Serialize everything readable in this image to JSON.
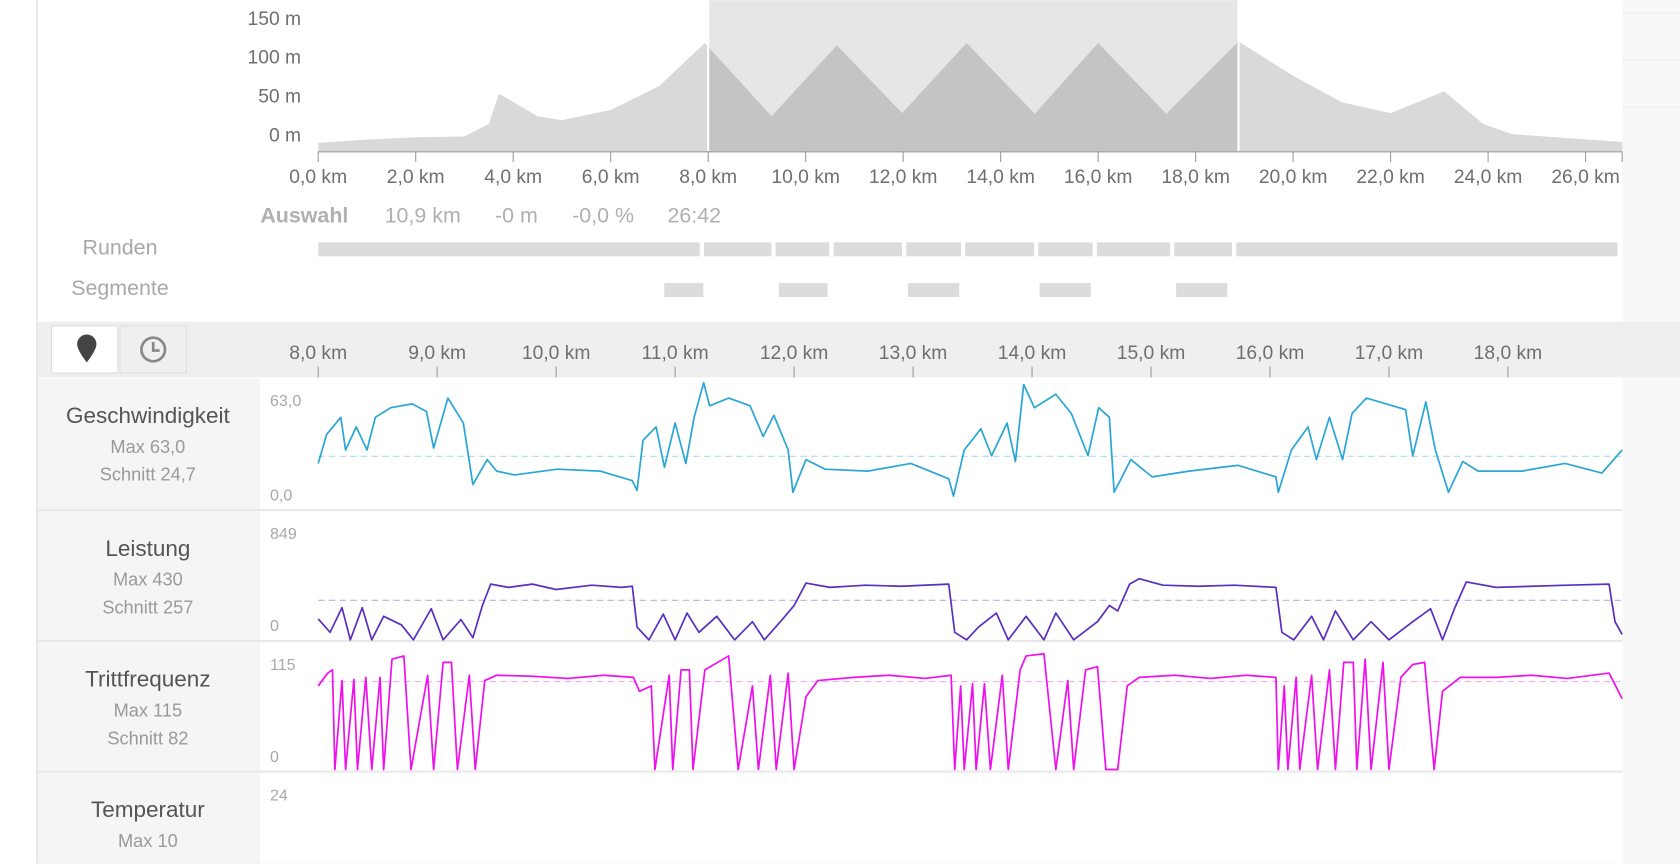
{
  "chart_data": [
    {
      "type": "area",
      "x": [
        0,
        1,
        2,
        3,
        3.5,
        3.71,
        4.5,
        5,
        6,
        7,
        7.93,
        9.3,
        10.64,
        11.98,
        13.3,
        14.7,
        16.0,
        17.4,
        18.88,
        20,
        21,
        22,
        23.1,
        23.9,
        24.5,
        26.75
      ],
      "values": [
        -8,
        -4,
        -1,
        0,
        16,
        55,
        26,
        21,
        34,
        65,
        120,
        26,
        117,
        30,
        120,
        29,
        120,
        29,
        122,
        78,
        44,
        30,
        58,
        16,
        3,
        -7
      ],
      "color": "#d9d9d9",
      "selected_color": "#c4c4c4",
      "selection": [
        8.0,
        18.88
      ],
      "xlim": [
        0,
        26.75
      ],
      "xticks": [
        {
          "value": 0,
          "label": "0,0 km"
        },
        {
          "value": 2,
          "label": "2,0 km"
        },
        {
          "value": 4,
          "label": "4,0 km"
        },
        {
          "value": 6,
          "label": "6,0 km"
        },
        {
          "value": 8,
          "label": "8,0 km"
        },
        {
          "value": 10,
          "label": "10,0 km"
        },
        {
          "value": 12,
          "label": "12,0 km"
        },
        {
          "value": 14,
          "label": "14,0 km"
        },
        {
          "value": 16,
          "label": "16,0 km"
        },
        {
          "value": 18,
          "label": "18,0 km"
        },
        {
          "value": 20,
          "label": "20,0 km"
        },
        {
          "value": 22,
          "label": "22,0 km"
        },
        {
          "value": 24,
          "label": "24,0 km"
        },
        {
          "value": 26,
          "label": "26,0 km"
        }
      ],
      "ylim": [
        -19,
        175
      ],
      "yticks": [
        {
          "value": 0,
          "label": "0 m"
        },
        {
          "value": 50,
          "label": "50 m"
        },
        {
          "value": 100,
          "label": "100 m"
        },
        {
          "value": 150,
          "label": "150 m"
        }
      ]
    },
    {
      "type": "line",
      "xlim": [
        8.0,
        18.96
      ],
      "xticks": [
        {
          "value": 8,
          "label": "8,0 km"
        },
        {
          "value": 9,
          "label": "9,0 km"
        },
        {
          "value": 10,
          "label": "10,0 km"
        },
        {
          "value": 11,
          "label": "11,0 km"
        },
        {
          "value": 12,
          "label": "12,0 km"
        },
        {
          "value": 13,
          "label": "13,0 km"
        },
        {
          "value": 14,
          "label": "14,0 km"
        },
        {
          "value": 15,
          "label": "15,0 km"
        },
        {
          "value": 16,
          "label": "16,0 km"
        },
        {
          "value": 17,
          "label": "17,0 km"
        },
        {
          "value": 18,
          "label": "18,0 km"
        }
      ],
      "series": [
        {
          "name": "Geschwindigkeit",
          "color": "#2aa6d6",
          "max_label": "Max 63,0",
          "mean": 24.7,
          "mean_label": "Schnitt 24,7",
          "ylim": [
            0,
            63
          ],
          "yticks": [
            {
              "value": 0,
              "label": "0,0"
            },
            {
              "value": 63,
              "label": "63,0"
            }
          ],
          "x": [
            8.0,
            8.07,
            8.19,
            8.23,
            8.32,
            8.41,
            8.48,
            8.61,
            8.79,
            8.91,
            8.97,
            9.09,
            9.22,
            9.3,
            9.42,
            9.5,
            9.65,
            10.01,
            10.37,
            10.64,
            10.68,
            10.73,
            10.84,
            10.91,
            11.0,
            11.09,
            11.16,
            11.24,
            11.29,
            11.45,
            11.63,
            11.74,
            11.83,
            11.95,
            11.99,
            12.1,
            12.26,
            12.62,
            12.98,
            13.3,
            13.34,
            13.43,
            13.57,
            13.66,
            13.79,
            13.86,
            13.93,
            14.02,
            14.2,
            14.33,
            14.47,
            14.56,
            14.65,
            14.69,
            14.83,
            15.01,
            15.32,
            15.73,
            16.05,
            16.07,
            16.18,
            16.32,
            16.39,
            16.5,
            16.61,
            16.69,
            16.81,
            17.14,
            17.2,
            17.31,
            17.39,
            17.5,
            17.62,
            17.75,
            18.12,
            18.48,
            18.79,
            18.96
          ],
          "values": [
            21,
            36,
            45,
            28,
            40,
            28,
            45,
            50,
            52,
            48,
            29,
            55,
            42,
            10,
            23,
            17,
            15,
            18,
            17,
            12,
            7,
            33,
            40,
            19,
            42,
            21,
            45,
            63,
            51,
            55,
            51,
            35,
            46,
            28,
            6,
            23,
            18,
            17,
            21,
            13,
            4,
            28,
            39,
            25,
            42,
            22,
            62,
            50,
            57,
            47,
            25,
            50,
            45,
            6,
            23,
            14,
            17,
            20,
            14,
            6,
            28,
            40,
            23,
            45,
            23,
            47,
            55,
            49,
            25,
            53,
            28,
            6,
            22,
            17,
            17,
            21,
            16,
            28
          ]
        },
        {
          "name": "Leistung",
          "color": "#5b2fc0",
          "max_label": "Max 430",
          "mean": 257,
          "mean_label": "Schnitt 257",
          "ylim": [
            0,
            849
          ],
          "yticks": [
            0,
            849
          ],
          "x": [
            8.0,
            8.1,
            8.2,
            8.27,
            8.37,
            8.45,
            8.55,
            8.7,
            8.8,
            8.95,
            9.05,
            9.2,
            9.3,
            9.38,
            9.45,
            9.6,
            9.8,
            10.0,
            10.3,
            10.55,
            10.64,
            10.68,
            10.78,
            10.9,
            11.0,
            11.1,
            11.2,
            11.35,
            11.5,
            11.65,
            11.75,
            11.9,
            12.0,
            12.1,
            12.3,
            12.6,
            12.9,
            13.3,
            13.35,
            13.45,
            13.55,
            13.7,
            13.8,
            13.95,
            14.1,
            14.2,
            14.35,
            14.55,
            14.65,
            14.72,
            14.82,
            14.9,
            15.1,
            15.4,
            15.7,
            16.05,
            16.1,
            16.2,
            16.35,
            16.45,
            16.55,
            16.7,
            16.85,
            17.0,
            17.2,
            17.35,
            17.45,
            17.55,
            17.65,
            17.9,
            18.2,
            18.5,
            18.85,
            18.9,
            18.96
          ],
          "values": [
            136,
            49,
            209,
            0,
            209,
            0,
            153,
            97,
            0,
            202,
            0,
            132,
            14,
            223,
            362,
            341,
            362,
            327,
            355,
            341,
            348,
            83,
            0,
            167,
            0,
            174,
            49,
            153,
            0,
            118,
            0,
            132,
            223,
            369,
            341,
            355,
            348,
            362,
            49,
            0,
            83,
            174,
            0,
            153,
            0,
            174,
            0,
            118,
            223,
            188,
            362,
            397,
            355,
            348,
            355,
            341,
            49,
            0,
            153,
            0,
            188,
            0,
            118,
            0,
            118,
            202,
            0,
            202,
            376,
            341,
            348,
            355,
            362,
            118,
            35
          ]
        },
        {
          "name": "Trittfrequenz",
          "color": "#ee11ee",
          "max_label": "Max 115",
          "mean": 82,
          "mean_label": "Schnitt 82",
          "ylim": [
            0,
            115
          ],
          "yticks": [
            0,
            115
          ],
          "x": [
            8.0,
            8.08,
            8.12,
            8.14,
            8.2,
            8.23,
            8.3,
            8.33,
            8.4,
            8.45,
            8.52,
            8.55,
            8.62,
            8.72,
            8.78,
            8.92,
            8.97,
            9.05,
            9.12,
            9.17,
            9.27,
            9.32,
            9.4,
            9.5,
            9.8,
            10.1,
            10.4,
            10.65,
            10.7,
            10.8,
            10.83,
            10.95,
            10.98,
            11.05,
            11.12,
            11.15,
            11.25,
            11.45,
            11.53,
            11.65,
            11.7,
            11.8,
            11.85,
            11.95,
            12.0,
            12.1,
            12.2,
            12.5,
            12.8,
            13.1,
            13.32,
            13.35,
            13.4,
            13.43,
            13.5,
            13.53,
            13.6,
            13.65,
            13.75,
            13.8,
            13.9,
            13.95,
            14.1,
            14.2,
            14.3,
            14.35,
            14.45,
            14.55,
            14.62,
            14.72,
            14.8,
            14.9,
            15.2,
            15.5,
            15.8,
            16.05,
            16.07,
            16.12,
            16.15,
            16.22,
            16.25,
            16.35,
            16.4,
            16.5,
            16.55,
            16.62,
            16.7,
            16.73,
            16.8,
            16.85,
            16.95,
            17.0,
            17.1,
            17.2,
            17.3,
            17.38,
            17.45,
            17.6,
            17.9,
            18.2,
            18.5,
            18.85,
            18.96
          ],
          "values": [
            78,
            90,
            93,
            0,
            83,
            0,
            84,
            0,
            86,
            0,
            86,
            0,
            103,
            106,
            0,
            88,
            0,
            100,
            100,
            0,
            88,
            0,
            83,
            88,
            87,
            85,
            88,
            86,
            73,
            78,
            0,
            88,
            0,
            93,
            93,
            0,
            93,
            106,
            0,
            78,
            0,
            88,
            0,
            90,
            0,
            68,
            83,
            86,
            88,
            85,
            88,
            0,
            78,
            0,
            80,
            0,
            80,
            0,
            88,
            0,
            93,
            106,
            108,
            0,
            83,
            0,
            93,
            96,
            0,
            0,
            78,
            86,
            88,
            85,
            88,
            86,
            0,
            78,
            0,
            86,
            0,
            88,
            0,
            93,
            0,
            100,
            100,
            0,
            103,
            0,
            100,
            0,
            86,
            98,
            100,
            0,
            73,
            86,
            86,
            88,
            85,
            90,
            66
          ]
        },
        {
          "name": "Temperatur",
          "max_label": "Max 10",
          "yticks": [
            24
          ]
        }
      ]
    }
  ],
  "selection_summary": {
    "label": "Auswahl",
    "values": [
      "10,9 km",
      "-0 m",
      "-0,0 %",
      "26:42"
    ]
  },
  "laps_label": "Runden",
  "laps": [
    0,
    7.87,
    9.34,
    10.53,
    12.02,
    13.23,
    14.73,
    15.93,
    17.52,
    18.79,
    26.7
  ],
  "segments_label": "Segmente",
  "segments": [
    [
      7.1,
      7.9
    ],
    [
      9.45,
      10.45
    ],
    [
      12.1,
      13.15
    ],
    [
      14.8,
      15.85
    ],
    [
      17.6,
      18.65
    ]
  ]
}
